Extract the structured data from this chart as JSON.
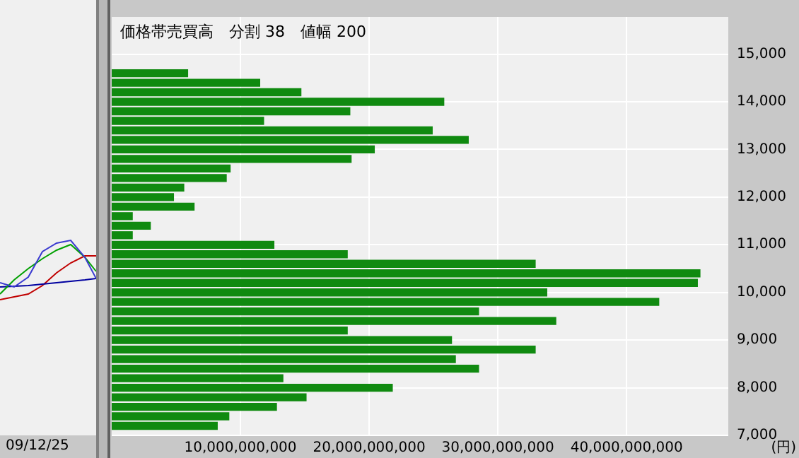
{
  "chart_data": {
    "type": "bar",
    "orientation": "horizontal",
    "title": "価格帯売買高　分割 38　値幅 200",
    "xlabel": "(円)",
    "annotations": [
      "09/12/25"
    ],
    "x": [
      14600,
      14400,
      14200,
      14000,
      13800,
      13600,
      13400,
      13200,
      13000,
      12800,
      12600,
      12400,
      12200,
      12000,
      11800,
      11600,
      11400,
      11200,
      11000,
      10800,
      10600,
      10400,
      10200,
      10000,
      9800,
      9600,
      9400,
      9200,
      9000,
      8800,
      8600,
      8400,
      8200,
      8000,
      7800,
      7600,
      7400,
      7200
    ],
    "values": [
      5900000000,
      11500000000,
      14700000000,
      25800000000,
      18500000000,
      11800000000,
      24900000000,
      27700000000,
      20400000000,
      18600000000,
      9200000000,
      8900000000,
      5600000000,
      4800000000,
      6400000000,
      1600000000,
      3000000000,
      1600000000,
      12600000000,
      18300000000,
      32900000000,
      45700000000,
      45500000000,
      33800000000,
      42500000000,
      28500000000,
      34500000000,
      18300000000,
      26400000000,
      32900000000,
      26700000000,
      28500000000,
      13300000000,
      21800000000,
      15100000000,
      12800000000,
      9100000000,
      8200000000
    ],
    "color": "#108a10",
    "xlim": [
      0,
      47900000000
    ],
    "xticks": [
      {
        "value": 10000000000,
        "label": "10,000,000,000"
      },
      {
        "value": 20000000000,
        "label": "20,000,000,000"
      },
      {
        "value": 30000000000,
        "label": "30,000,000,000"
      },
      {
        "value": 40000000000,
        "label": "40,000,000,000"
      }
    ],
    "ylim": [
      7000,
      15780
    ],
    "yticks": [
      {
        "value": 7000,
        "label": "7,000"
      },
      {
        "value": 8000,
        "label": "8,000"
      },
      {
        "value": 9000,
        "label": "9,000"
      },
      {
        "value": 10000,
        "label": "10,000"
      },
      {
        "value": 11000,
        "label": "11,000"
      },
      {
        "value": 12000,
        "label": "12,000"
      },
      {
        "value": 13000,
        "label": "13,000"
      },
      {
        "value": 14000,
        "label": "14,000"
      },
      {
        "value": 15000,
        "label": "15,000"
      }
    ],
    "grid": true
  }
}
